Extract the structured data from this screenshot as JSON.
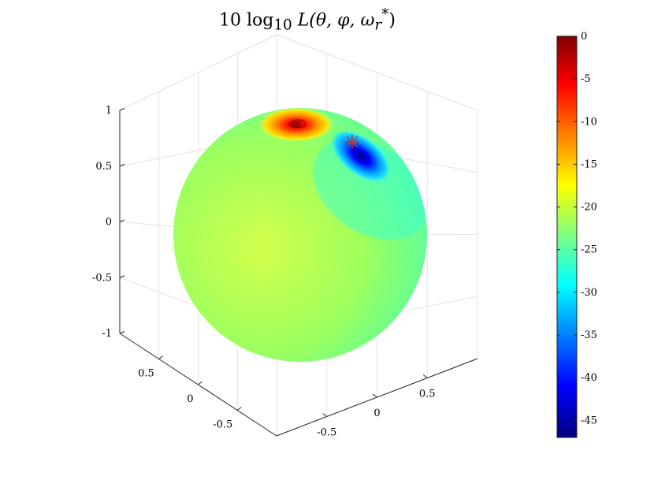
{
  "chart_data": {
    "type": "heatmap",
    "title": "10 log10 L(θ, φ, ω_r*)",
    "title_parts": {
      "prefix": "10 log",
      "sub": "10",
      "func": " L(θ, φ, ω",
      "wsub": "r",
      "wsup": "*",
      "close": ")"
    },
    "surface": "unit-sphere",
    "axes": {
      "z_ticks": [
        "1",
        "0.5",
        "0",
        "-0.5",
        "-1"
      ],
      "x_ticks": [
        "0.5",
        "0",
        "-0.5"
      ],
      "y_ticks": [
        "0.5",
        "0",
        "-0.5"
      ],
      "zlim": [
        -1,
        1
      ],
      "xlim": [
        -1,
        1
      ],
      "ylim": [
        -1,
        1
      ],
      "grid": true
    },
    "colormap": "jet",
    "clim": [
      -47,
      0
    ],
    "colorbar_ticks": [
      "0",
      "-5",
      "-10",
      "-15",
      "-20",
      "-25",
      "-30",
      "-35",
      "-40",
      "-45"
    ],
    "colorbar_values": [
      0,
      -5,
      -10,
      -15,
      -20,
      -25,
      -30,
      -35,
      -40,
      -45
    ],
    "features": [
      {
        "name": "maximum",
        "value": 0
      },
      {
        "name": "minimum",
        "value": -47,
        "marker": "asterisk"
      }
    ]
  }
}
